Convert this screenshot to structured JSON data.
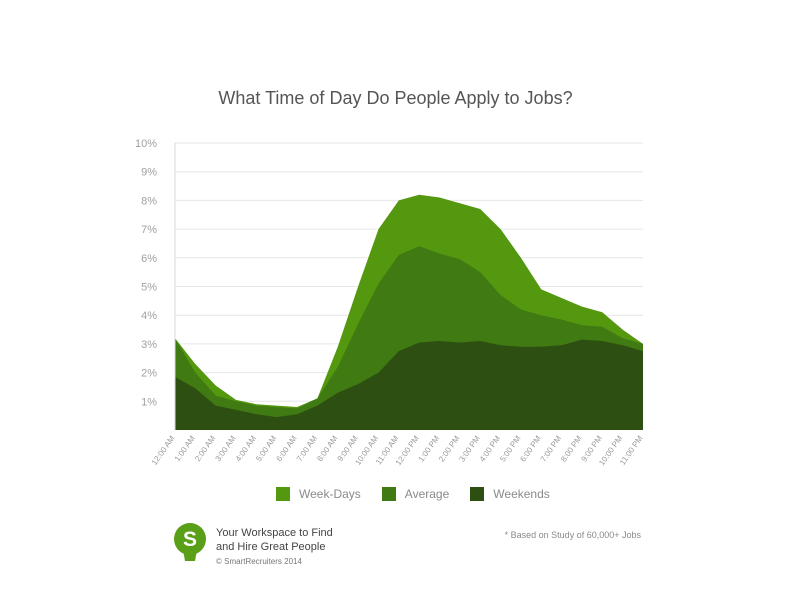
{
  "chart_data": {
    "type": "area",
    "title": "What Time of Day Do People Apply to Jobs?",
    "categories": [
      "12:00 AM",
      "1:00 AM",
      "2:00 AM",
      "3:00 AM",
      "4:00 AM",
      "5:00 AM",
      "6:00 AM",
      "7:00 AM",
      "8:00 AM",
      "9:00 AM",
      "10:00 AM",
      "11:00 AM",
      "12:00 PM",
      "1:00 PM",
      "2:00 PM",
      "3:00 PM",
      "4:00 PM",
      "5:00 PM",
      "6:00 PM",
      "7:00 PM",
      "8:00 PM",
      "9:00 PM",
      "10:00 PM",
      "11:00 PM"
    ],
    "y_ticks": [
      "1%",
      "2%",
      "3%",
      "4%",
      "5%",
      "6%",
      "7%",
      "8%",
      "9%",
      "10%"
    ],
    "ylim": [
      0,
      10
    ],
    "grid": true,
    "legend_position": "bottom",
    "series": [
      {
        "name": "Week-Days",
        "color": "#54980f",
        "values": [
          3.2,
          2.3,
          1.55,
          1.05,
          0.9,
          0.85,
          0.8,
          1.1,
          2.9,
          5.0,
          7.0,
          8.0,
          8.2,
          8.1,
          7.9,
          7.7,
          7.0,
          6.0,
          4.9,
          4.6,
          4.3,
          4.1,
          3.5,
          3.0
        ]
      },
      {
        "name": "Average",
        "color": "#407a12",
        "values": [
          3.2,
          2.0,
          1.2,
          1.0,
          0.85,
          0.8,
          0.75,
          1.1,
          2.2,
          3.7,
          5.1,
          6.1,
          6.4,
          6.15,
          5.95,
          5.5,
          4.7,
          4.2,
          4.0,
          3.85,
          3.65,
          3.6,
          3.2,
          3.0
        ]
      },
      {
        "name": "Weekends",
        "color": "#2d4f11",
        "values": [
          1.85,
          1.45,
          0.85,
          0.7,
          0.55,
          0.45,
          0.55,
          0.85,
          1.3,
          1.6,
          2.0,
          2.75,
          3.05,
          3.1,
          3.05,
          3.1,
          2.95,
          2.9,
          2.9,
          2.95,
          3.15,
          3.1,
          2.95,
          2.75
        ]
      }
    ]
  },
  "brand": {
    "logo_letter": "S",
    "line1": "Your Workspace to Find",
    "line2": "and Hire Great People",
    "copyright": "© SmartRecruiters 2014"
  },
  "footnote": "* Based on Study of 60,000+ Jobs",
  "colors": {
    "logo": "#5a9f18",
    "grid": "#e6e6e6"
  }
}
